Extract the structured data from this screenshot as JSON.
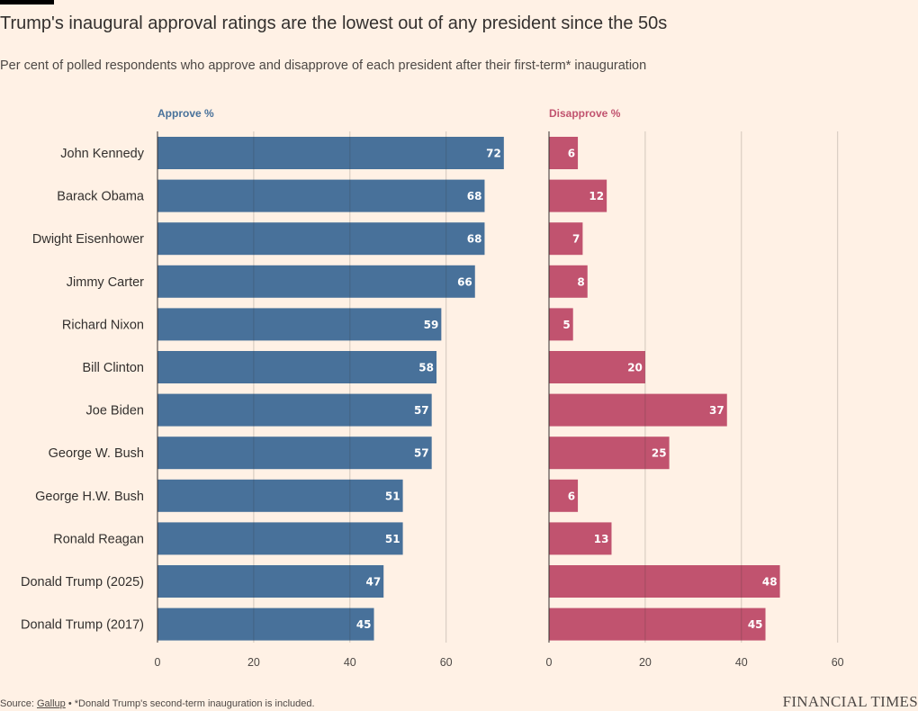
{
  "header": {
    "title": "Trump's inaugural approval ratings are the lowest out of any president since the 50s",
    "subtitle": "Per cent of polled respondents who approve and disapprove of each president after their first-term* inauguration"
  },
  "chart_data": {
    "type": "bar",
    "orientation": "horizontal",
    "categories": [
      "John Kennedy",
      "Barack Obama",
      "Dwight Eisenhower",
      "Jimmy Carter",
      "Richard Nixon",
      "Bill Clinton",
      "Joe Biden",
      "George W. Bush",
      "George H.W. Bush",
      "Ronald Reagan",
      "Donald Trump (2025)",
      "Donald Trump (2017)"
    ],
    "series": [
      {
        "name": "Approve %",
        "color": "#48719a",
        "values": [
          72,
          68,
          68,
          66,
          59,
          58,
          57,
          57,
          51,
          51,
          47,
          45
        ],
        "xlim": [
          0,
          70
        ],
        "ticks": [
          0,
          20,
          40,
          60
        ]
      },
      {
        "name": "Disapprove %",
        "color": "#c1536f",
        "values": [
          6,
          12,
          7,
          8,
          5,
          20,
          37,
          25,
          6,
          13,
          48,
          45
        ],
        "xlim": [
          0,
          70
        ],
        "ticks": [
          0,
          20,
          40,
          60
        ]
      }
    ],
    "grid": true,
    "data_labels": true
  },
  "footer": {
    "source_prefix": "Source: ",
    "source_link": "Gallup",
    "note": " • *Donald Trump's second-term inauguration is included."
  },
  "brand": "FINANCIAL TIMES"
}
